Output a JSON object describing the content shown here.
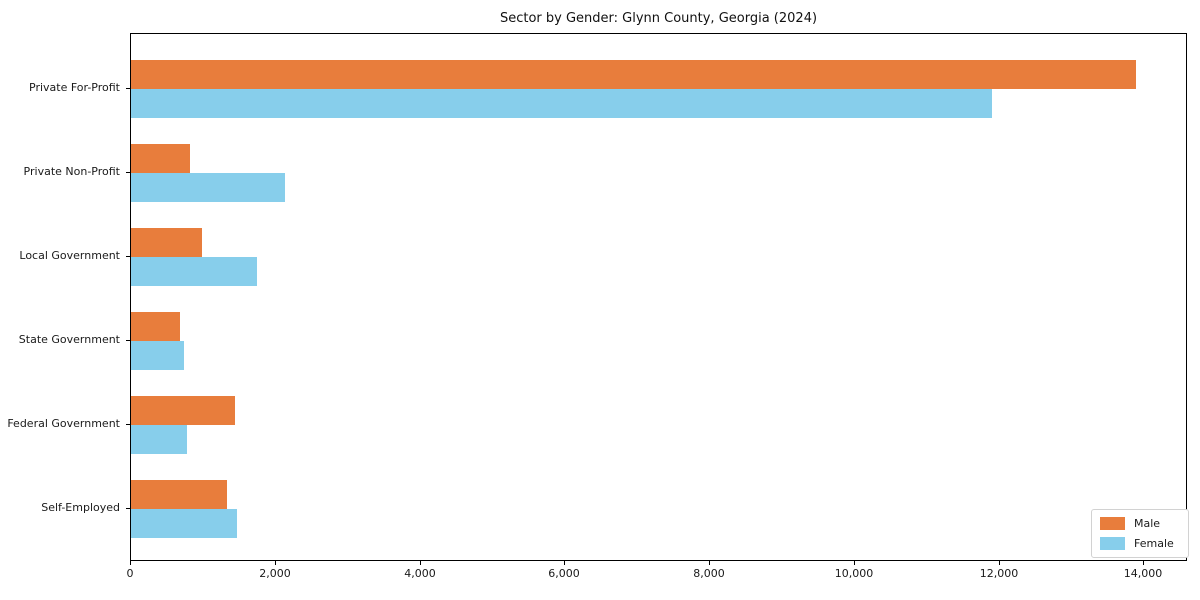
{
  "chart_data": {
    "type": "bar",
    "orientation": "horizontal",
    "title": "Sector by Gender: Glynn County, Georgia (2024)",
    "categories": [
      "Private For-Profit",
      "Private Non-Profit",
      "Local Government",
      "State Government",
      "Federal Government",
      "Self-Employed"
    ],
    "series": [
      {
        "name": "Male",
        "color": "#e87d3c",
        "values": [
          13880,
          815,
          985,
          680,
          1440,
          1330
        ]
      },
      {
        "name": "Female",
        "color": "#87ceeb",
        "values": [
          11890,
          2130,
          1745,
          735,
          780,
          1470
        ]
      }
    ],
    "xlim": [
      0,
      14575
    ],
    "xticks": [
      0,
      2000,
      4000,
      6000,
      8000,
      10000,
      12000,
      14000
    ],
    "xtick_labels": [
      "0",
      "2,000",
      "4,000",
      "6,000",
      "8,000",
      "10,000",
      "12,000",
      "14,000"
    ],
    "xlabel": "",
    "ylabel": "",
    "grid": false,
    "legend_position": "lower right",
    "legend": {
      "male_label": "Male",
      "female_label": "Female"
    }
  }
}
